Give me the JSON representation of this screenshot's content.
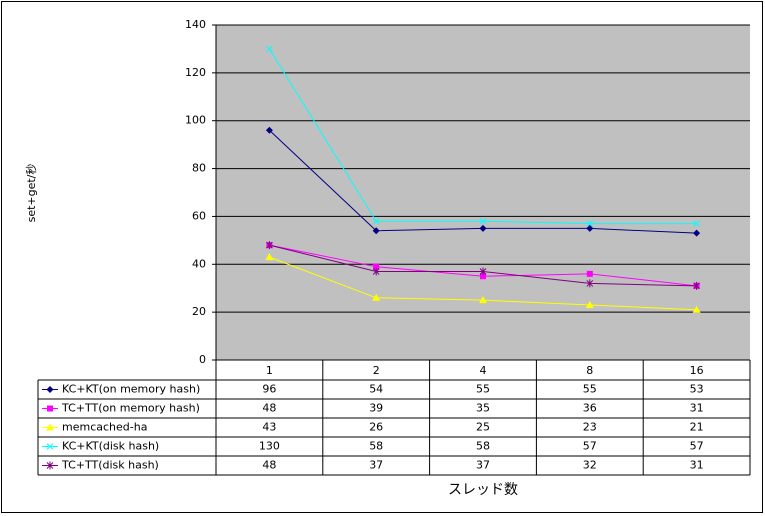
{
  "chart_data": {
    "type": "line",
    "y_label": "set+get/秒",
    "x_label": "スレッド数",
    "categories": [
      "1",
      "2",
      "4",
      "8",
      "16"
    ],
    "ylim": [
      0,
      140
    ],
    "yticks": [
      0,
      20,
      40,
      60,
      80,
      100,
      120,
      140
    ],
    "grid": true,
    "series": [
      {
        "name": "KC+KT(on memory hash)",
        "color": "#000080",
        "marker": "diamond",
        "values": [
          96,
          54,
          55,
          55,
          53
        ]
      },
      {
        "name": "TC+TT(on memory hash)",
        "color": "#ff00ff",
        "marker": "square",
        "values": [
          48,
          39,
          35,
          36,
          31
        ]
      },
      {
        "name": "memcached-ha",
        "color": "#ffff00",
        "marker": "triangle",
        "values": [
          43,
          26,
          25,
          23,
          21
        ]
      },
      {
        "name": "KC+KT(disk hash)",
        "color": "#00ffff",
        "marker": "x",
        "values": [
          130,
          58,
          58,
          57,
          57
        ]
      },
      {
        "name": "TC+TT(disk hash)",
        "color": "#800080",
        "marker": "star",
        "values": [
          48,
          37,
          37,
          32,
          31
        ]
      }
    ]
  }
}
